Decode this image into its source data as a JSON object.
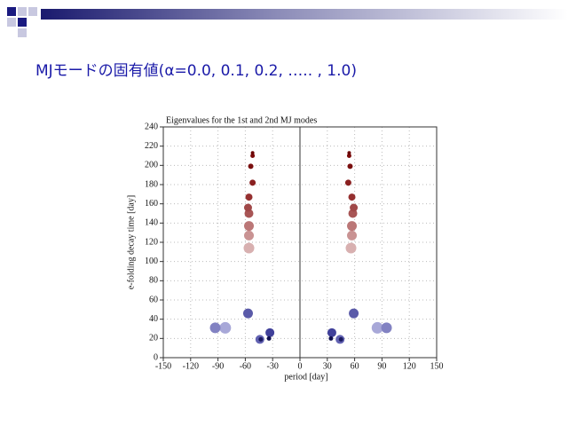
{
  "slide": {
    "title": "MJモードの固有値(α=0.0, 0.1, 0.2, ….. , 1.0)"
  },
  "chart_data": {
    "type": "scatter",
    "title": "Eigenvalues for the 1st and 2nd  MJ modes",
    "x_label": "period  [day]",
    "y_label": "e-folding decay time  [day]",
    "xlim": [
      -150,
      150
    ],
    "ylim": [
      0,
      240
    ],
    "xticks": [
      -150,
      -120,
      -90,
      -60,
      -30,
      0,
      30,
      60,
      90,
      120,
      150
    ],
    "yticks": [
      0,
      20,
      40,
      60,
      80,
      100,
      120,
      140,
      160,
      180,
      200,
      220,
      240
    ],
    "grid": true,
    "points": {
      "x": [
        -56,
        -56,
        -56,
        -56,
        -57,
        -56,
        -52,
        -54,
        -52,
        -52,
        56,
        57,
        57,
        58,
        59,
        57,
        53,
        55,
        54,
        54,
        -82,
        -93,
        -57,
        -33,
        -44,
        -43,
        -34,
        85,
        95,
        59,
        35,
        44,
        45,
        34
      ],
      "y": [
        114,
        127,
        137,
        150,
        156,
        167,
        182,
        199,
        210,
        213,
        114,
        127,
        137,
        150,
        156,
        167,
        182,
        199,
        210,
        213,
        31,
        31,
        46,
        26,
        19,
        19,
        20,
        31,
        31,
        46,
        26,
        19,
        19,
        20
      ],
      "sizes": [
        6,
        5.5,
        5.5,
        5,
        4.5,
        4,
        3.5,
        3,
        2.5,
        2,
        6,
        5.5,
        5.5,
        5,
        4.5,
        4,
        3.5,
        3,
        2.5,
        2,
        6.5,
        6,
        5.5,
        5,
        5,
        2.5,
        2.5,
        6.5,
        6,
        5.5,
        5,
        5,
        2.5,
        2.5
      ],
      "colors": [
        "#d8b0b0",
        "#c99393",
        "#bb7777",
        "#a85555",
        "#a04848",
        "#953030",
        "#8a2020",
        "#7a1010",
        "#7a0a0a",
        "#6b0000",
        "#d8b0b0",
        "#c99393",
        "#bb7777",
        "#a85555",
        "#a04848",
        "#953030",
        "#8a2020",
        "#7a1010",
        "#7a0a0a",
        "#6b0000",
        "#a8a8d8",
        "#8282c2",
        "#5a5aa8",
        "#40409a",
        "#6262b2",
        "#1a1a60",
        "#101050",
        "#a8a8d8",
        "#8282c2",
        "#5a5aa8",
        "#40409a",
        "#6262b2",
        "#1a1a60",
        "#101050"
      ]
    }
  }
}
